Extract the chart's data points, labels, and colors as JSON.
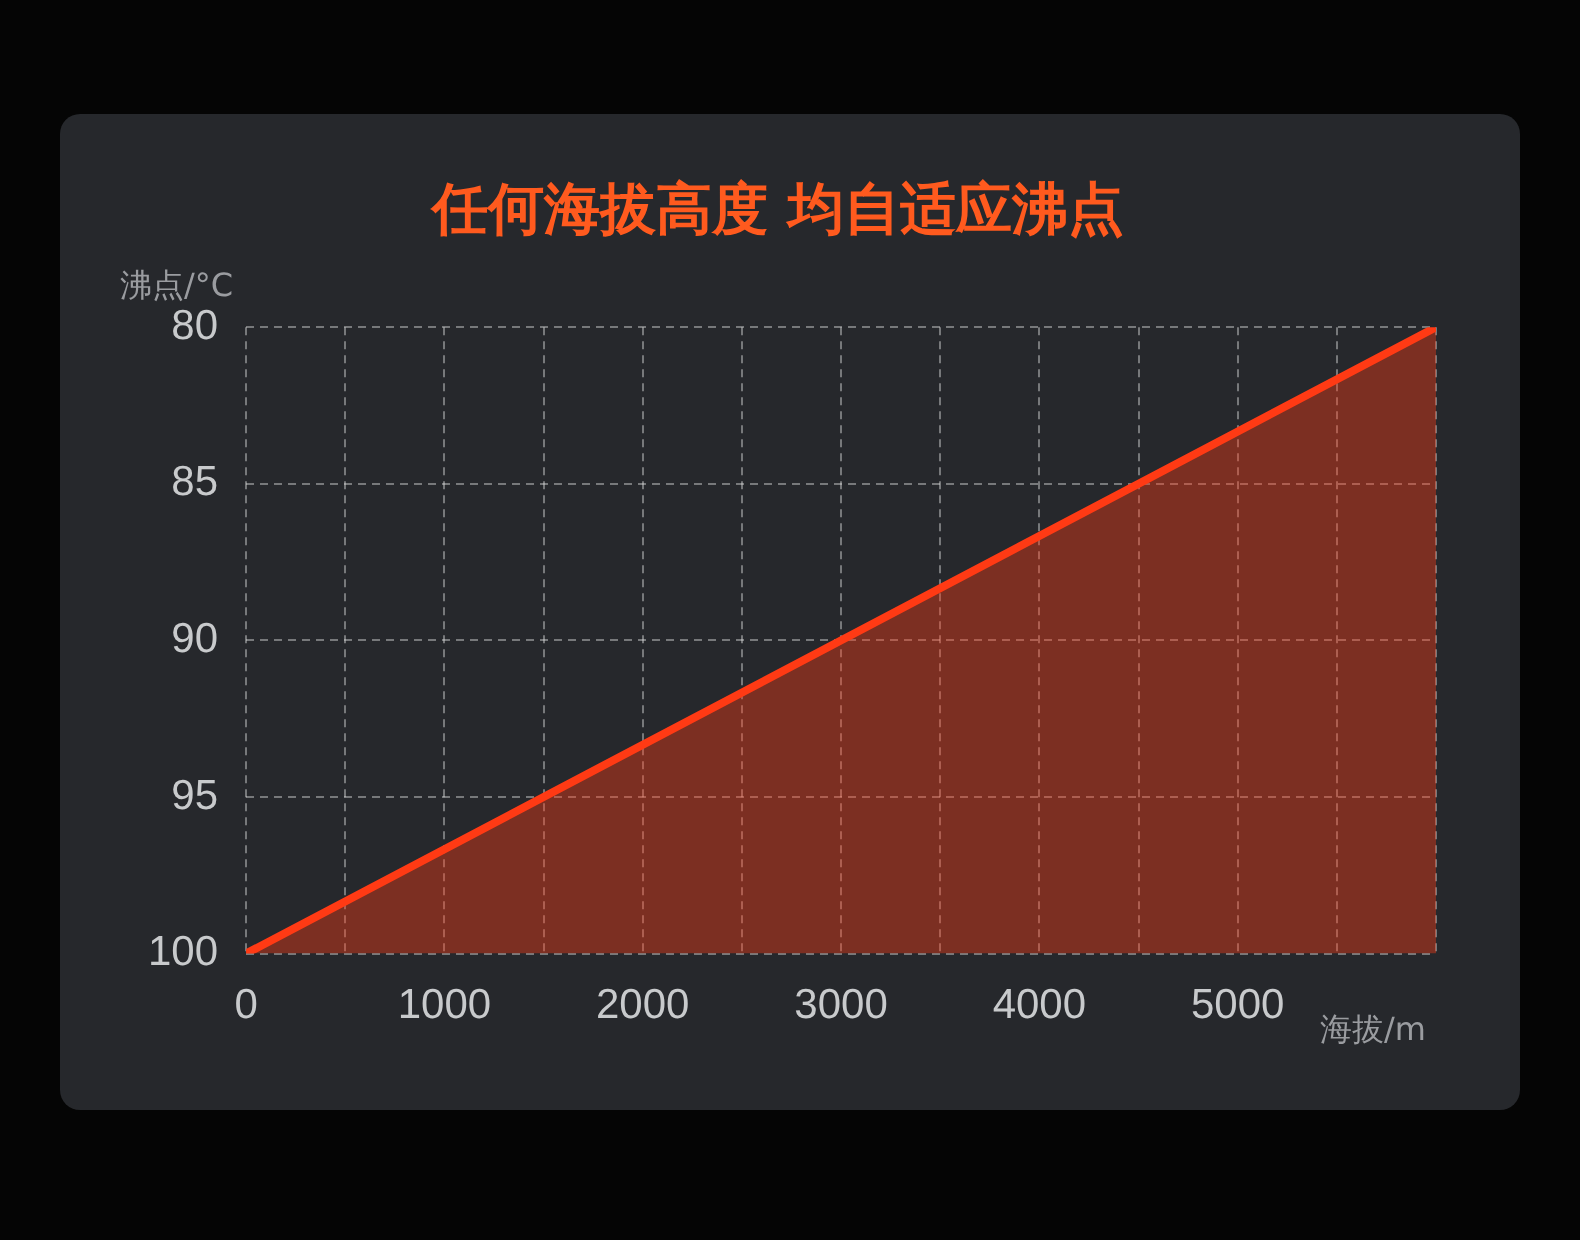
{
  "chart_data": {
    "type": "area",
    "title": "任何海拔高度 均自适应沸点",
    "xlabel": "海拔/m",
    "ylabel": "沸点/°C",
    "x": [
      0,
      6000
    ],
    "series": [
      {
        "color": "#ff3a14",
        "values": [
          100,
          80
        ]
      }
    ],
    "xlim": [
      0,
      6000
    ],
    "xticks": [
      0,
      {
        "value": 500,
        "label": null
      },
      1000,
      {
        "value": 1500,
        "label": null
      },
      2000,
      {
        "value": 2500,
        "label": null
      },
      3000,
      {
        "value": 3500,
        "label": null
      },
      4000,
      {
        "value": 4500,
        "label": null
      },
      5000,
      {
        "value": 5500,
        "label": null
      },
      {
        "value": 6000,
        "label": null
      }
    ],
    "ylim": [
      100,
      80
    ],
    "yticks": [
      80,
      85,
      90,
      95,
      100
    ],
    "grid": true,
    "legend": false,
    "marker": "none",
    "line_style": "solid"
  }
}
